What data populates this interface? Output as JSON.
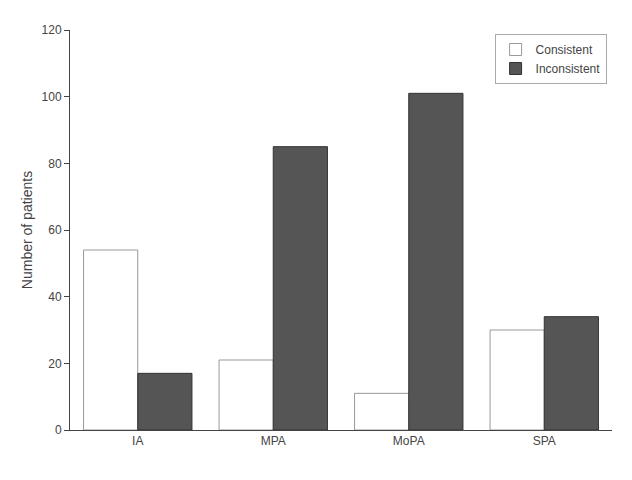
{
  "chart_data": {
    "type": "bar",
    "categories": [
      "IA",
      "MPA",
      "MoPA",
      "SPA"
    ],
    "series": [
      {
        "name": "Consistent",
        "color": "#ffffff",
        "values": [
          54,
          21,
          11,
          30
        ]
      },
      {
        "name": "Inconsistent",
        "color": "#555555",
        "values": [
          17,
          85,
          101,
          34
        ]
      }
    ],
    "ylabel": "Number of patients",
    "ylim": [
      0,
      120
    ],
    "yticks": [
      0,
      20,
      40,
      60,
      80,
      100,
      120
    ],
    "grid": false,
    "legend": "upper right"
  }
}
